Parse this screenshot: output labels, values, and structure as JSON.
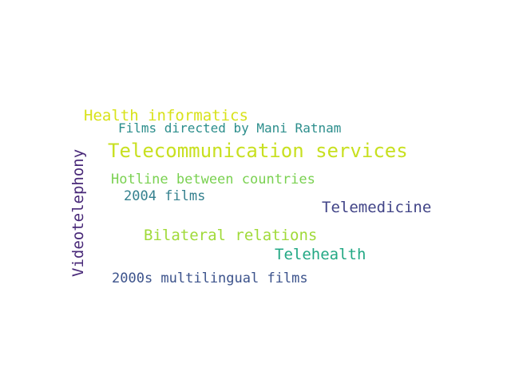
{
  "words": [
    {
      "text": "Health informatics",
      "color": "#d8e219"
    },
    {
      "text": "Films directed by Mani Ratnam",
      "color": "#2c8e8c"
    },
    {
      "text": "Telecommunication services",
      "color": "#c8e020"
    },
    {
      "text": "Hotline between countries",
      "color": "#7ad151"
    },
    {
      "text": "2004 films",
      "color": "#34808e"
    },
    {
      "text": "Telemedicine",
      "color": "#414487"
    },
    {
      "text": "Bilateral relations",
      "color": "#a0da39"
    },
    {
      "text": "Telehealth",
      "color": "#22a884"
    },
    {
      "text": "2000s multilingual films",
      "color": "#3b528b"
    },
    {
      "text": "Videotelephony",
      "color": "#482878"
    }
  ]
}
